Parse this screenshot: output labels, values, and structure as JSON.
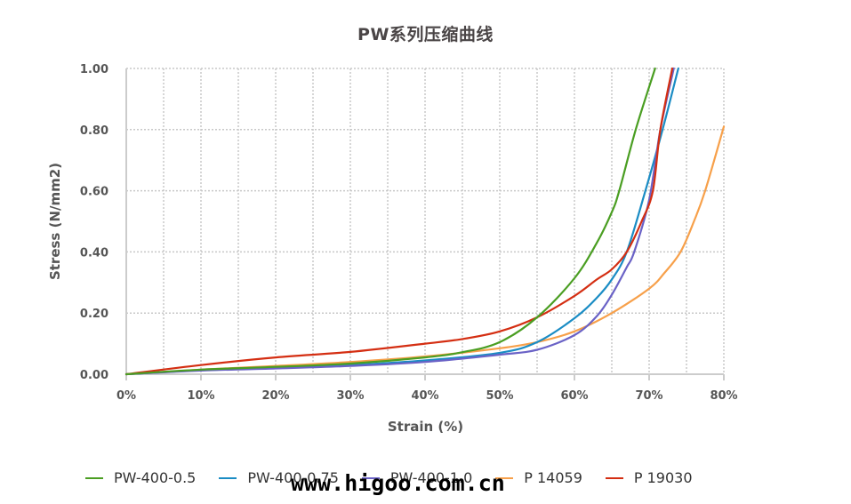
{
  "chart_data": {
    "type": "line",
    "title": "PW系列压缩曲线",
    "xlabel": "Strain (%)",
    "ylabel": "Stress (N/mm2)",
    "xlim": [
      0,
      80
    ],
    "ylim": [
      0,
      1.0
    ],
    "x_ticks": [
      "0%",
      "10%",
      "20%",
      "30%",
      "40%",
      "50%",
      "60%",
      "70%",
      "80%"
    ],
    "y_ticks": [
      "0.00",
      "0.20",
      "0.40",
      "0.60",
      "0.80",
      "1.00"
    ],
    "grid": {
      "vertical_step_pct": 5,
      "horizontal_step": 0.2,
      "style": "dotted"
    },
    "legend_position": "bottom",
    "series": [
      {
        "name": "PW-400-0.5",
        "color": "#4a9e22",
        "points": [
          [
            0,
            0
          ],
          [
            10,
            0.015
          ],
          [
            20,
            0.024
          ],
          [
            30,
            0.035
          ],
          [
            40,
            0.055
          ],
          [
            45,
            0.072
          ],
          [
            50,
            0.105
          ],
          [
            55,
            0.186
          ],
          [
            60,
            0.314
          ],
          [
            63,
            0.43
          ],
          [
            65,
            0.53
          ],
          [
            66,
            0.6
          ],
          [
            68.2,
            0.8
          ],
          [
            70.8,
            1.0
          ]
        ]
      },
      {
        "name": "PW-400-0.75",
        "color": "#1a8cc4",
        "points": [
          [
            0,
            0
          ],
          [
            10,
            0.013
          ],
          [
            20,
            0.02
          ],
          [
            30,
            0.03
          ],
          [
            40,
            0.045
          ],
          [
            50,
            0.07
          ],
          [
            55,
            0.105
          ],
          [
            60,
            0.183
          ],
          [
            63,
            0.25
          ],
          [
            65,
            0.31
          ],
          [
            67,
            0.4
          ],
          [
            69.5,
            0.6
          ],
          [
            71.8,
            0.8
          ],
          [
            73.9,
            1.0
          ]
        ]
      },
      {
        "name": "PW-400-1.0",
        "color": "#6a62c6",
        "points": [
          [
            0,
            0
          ],
          [
            10,
            0.012
          ],
          [
            20,
            0.019
          ],
          [
            30,
            0.027
          ],
          [
            40,
            0.04
          ],
          [
            50,
            0.064
          ],
          [
            55,
            0.08
          ],
          [
            60,
            0.128
          ],
          [
            63,
            0.19
          ],
          [
            65,
            0.26
          ],
          [
            67,
            0.35
          ],
          [
            68,
            0.4
          ],
          [
            70,
            0.57
          ],
          [
            71.5,
            0.8
          ],
          [
            73.3,
            1.0
          ]
        ]
      },
      {
        "name": "P 14059",
        "color": "#f7a04a",
        "points": [
          [
            0,
            0
          ],
          [
            10,
            0.015
          ],
          [
            20,
            0.027
          ],
          [
            30,
            0.04
          ],
          [
            40,
            0.058
          ],
          [
            50,
            0.085
          ],
          [
            55,
            0.105
          ],
          [
            60,
            0.14
          ],
          [
            65,
            0.2
          ],
          [
            70,
            0.28
          ],
          [
            72,
            0.33
          ],
          [
            74.2,
            0.4
          ],
          [
            76,
            0.5
          ],
          [
            77.5,
            0.6
          ],
          [
            80,
            0.81
          ]
        ]
      },
      {
        "name": "P 19030",
        "color": "#d42e12",
        "points": [
          [
            0,
            0
          ],
          [
            10,
            0.03
          ],
          [
            20,
            0.055
          ],
          [
            30,
            0.073
          ],
          [
            40,
            0.1
          ],
          [
            45,
            0.115
          ],
          [
            50,
            0.14
          ],
          [
            55,
            0.186
          ],
          [
            60,
            0.256
          ],
          [
            63,
            0.31
          ],
          [
            65,
            0.343
          ],
          [
            67,
            0.4
          ],
          [
            69,
            0.5
          ],
          [
            70.5,
            0.6
          ],
          [
            71.5,
            0.8
          ],
          [
            73.1,
            1.0
          ]
        ]
      }
    ]
  },
  "legend": {
    "items": [
      {
        "label": "PW-400-0.5",
        "color": "#4a9e22"
      },
      {
        "label": "PW-400-0.75",
        "color": "#1a8cc4"
      },
      {
        "label": "PW-400-1.0",
        "color": "#6a62c6"
      },
      {
        "label": "P 14059",
        "color": "#f7a04a"
      },
      {
        "label": "P 19030",
        "color": "#d42e12"
      }
    ]
  },
  "watermark": "www.higoo.com.cn"
}
